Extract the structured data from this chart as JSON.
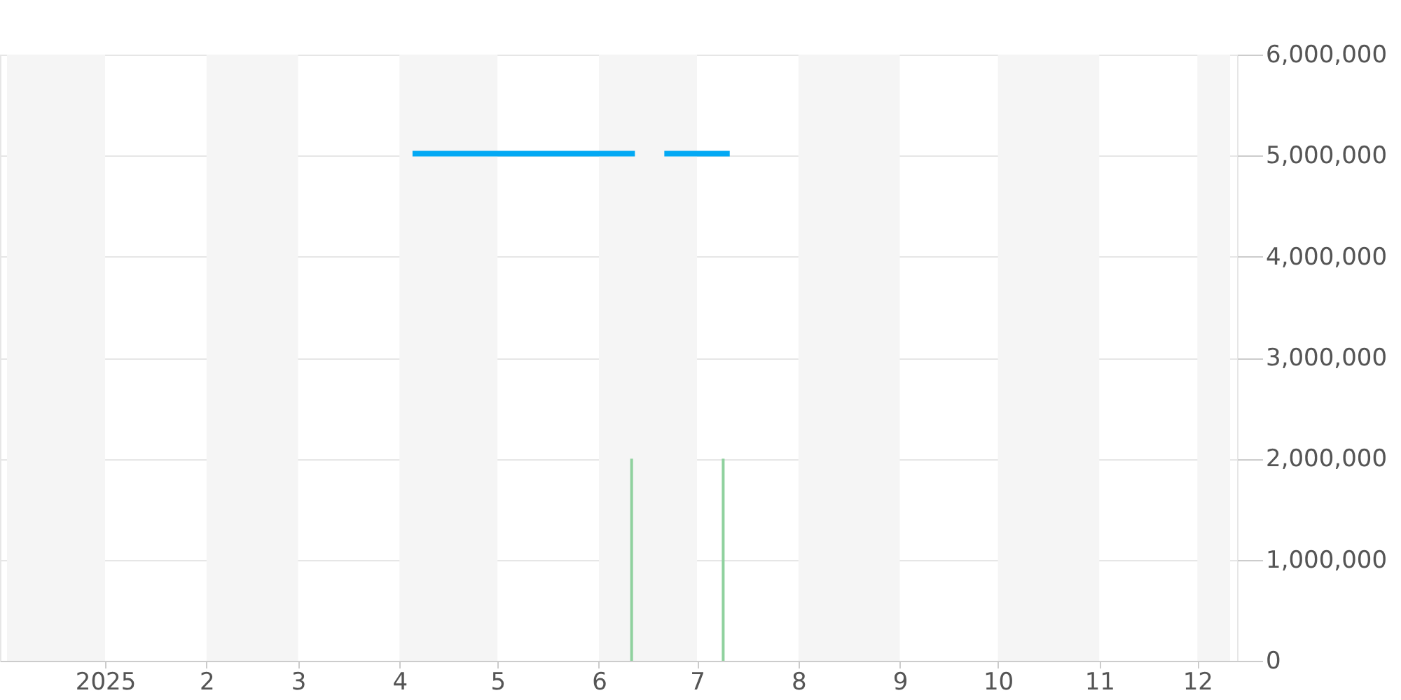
{
  "chart_data": {
    "type": "line",
    "x": [
      "2025-04-05",
      "2025-06-12",
      "2025-06-16",
      "2025-06-21",
      "2025-07-11"
    ],
    "series": [
      {
        "color": "#03a9f4",
        "values": [
          5020000,
          5020000,
          null,
          5020000,
          5020000
        ]
      },
      {
        "type": "bar",
        "color": "#8fd19e",
        "x": [
          "2025-06-11",
          "2025-07-09"
        ],
        "values": [
          2000000,
          2000000
        ]
      }
    ],
    "xlim": [
      "2024-12-02",
      "2025-12-11"
    ],
    "xticks": [
      {
        "value": "2025-01-01",
        "label": "2025"
      },
      {
        "value": "2025-02-01",
        "label": "2"
      },
      {
        "value": "2025-03-01",
        "label": "3"
      },
      {
        "value": "2025-04-01",
        "label": "4"
      },
      {
        "value": "2025-05-01",
        "label": "5"
      },
      {
        "value": "2025-06-01",
        "label": "6"
      },
      {
        "value": "2025-07-01",
        "label": "7"
      },
      {
        "value": "2025-08-01",
        "label": "8"
      },
      {
        "value": "2025-09-01",
        "label": "9"
      },
      {
        "value": "2025-10-01",
        "label": "10"
      },
      {
        "value": "2025-11-01",
        "label": "11"
      },
      {
        "value": "2025-12-01",
        "label": "12"
      }
    ],
    "ylim": [
      0,
      6000000
    ],
    "yticks": [
      {
        "value": 0,
        "label": "0"
      },
      {
        "value": 1000000,
        "label": "1,000,000"
      },
      {
        "value": 2000000,
        "label": "2,000,000"
      },
      {
        "value": 3000000,
        "label": "3,000,000"
      },
      {
        "value": 4000000,
        "label": "4,000,000"
      },
      {
        "value": 5000000,
        "label": "5,000,000"
      },
      {
        "value": 6000000,
        "label": "6,000,000"
      }
    ],
    "bands": [
      {
        "axis": "x",
        "from": "2024-12-02",
        "to": "2025-01-01",
        "color": "#f5f5f5"
      },
      {
        "axis": "x",
        "from": "2025-02-01",
        "to": "2025-03-01",
        "color": "#f5f5f5"
      },
      {
        "axis": "x",
        "from": "2025-04-01",
        "to": "2025-05-01",
        "color": "#f5f5f5"
      },
      {
        "axis": "x",
        "from": "2025-06-01",
        "to": "2025-07-01",
        "color": "#f5f5f5"
      },
      {
        "axis": "x",
        "from": "2025-08-01",
        "to": "2025-09-01",
        "color": "#f5f5f5"
      },
      {
        "axis": "x",
        "from": "2025-10-01",
        "to": "2025-11-01",
        "color": "#f5f5f5"
      },
      {
        "axis": "x",
        "from": "2025-12-01",
        "to": "2025-12-11",
        "color": "#f5f5f5"
      }
    ],
    "grid": "y"
  }
}
